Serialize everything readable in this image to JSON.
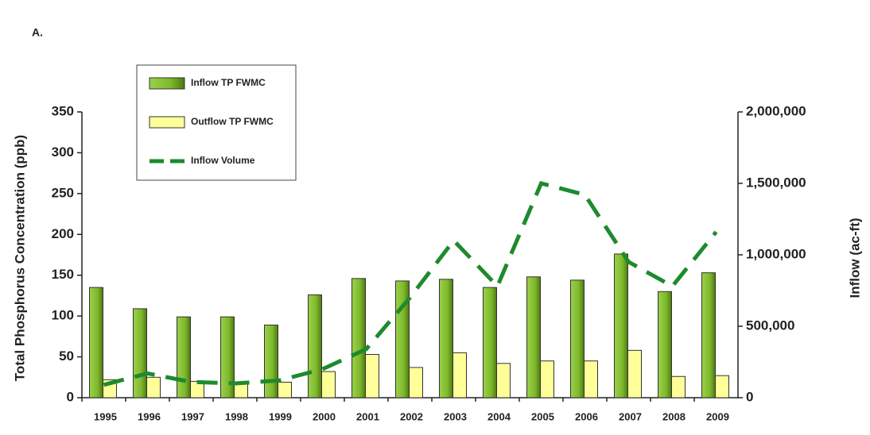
{
  "chart_data": {
    "type": "bar",
    "label": "A.",
    "ylabel": "Total Phosphorus Concentration (ppb)",
    "y2label": "Inflow (ac-ft)",
    "categories": [
      "1995",
      "1996",
      "1997",
      "1998",
      "1999",
      "2000",
      "2001",
      "2002",
      "2003",
      "2004",
      "2005",
      "2006",
      "2007",
      "2008",
      "2009"
    ],
    "series": [
      {
        "name": "Inflow TP FWMC",
        "color": "#8cc63f",
        "values": [
          135,
          109,
          99,
          99,
          89,
          126,
          146,
          143,
          145,
          135,
          148,
          144,
          176,
          130,
          153
        ]
      },
      {
        "name": "Outflow TP FWMC",
        "color": "#ffff99",
        "values": [
          22,
          25,
          20,
          19,
          19,
          32,
          53,
          37,
          55,
          42,
          45,
          45,
          58,
          26,
          27
        ]
      },
      {
        "name": "Inflow Volume",
        "color": "#1e8a2e",
        "axis": "y2",
        "style": "dashed",
        "values": [
          90000,
          170000,
          110000,
          100000,
          120000,
          200000,
          340000,
          700000,
          1100000,
          780000,
          1500000,
          1420000,
          950000,
          780000,
          1160000
        ]
      }
    ],
    "ylim": [
      0,
      350
    ],
    "yticks": [
      0,
      50,
      100,
      150,
      200,
      250,
      300,
      350
    ],
    "y2lim": [
      0,
      2000000
    ],
    "y2ticks": [
      0,
      {
        "value": 500000,
        "label": "500,000"
      },
      {
        "value": 1000000,
        "label": "1,000,000"
      },
      {
        "value": 1500000,
        "label": "1,500,000"
      },
      {
        "value": 2000000,
        "label": "2,000,000"
      }
    ]
  }
}
